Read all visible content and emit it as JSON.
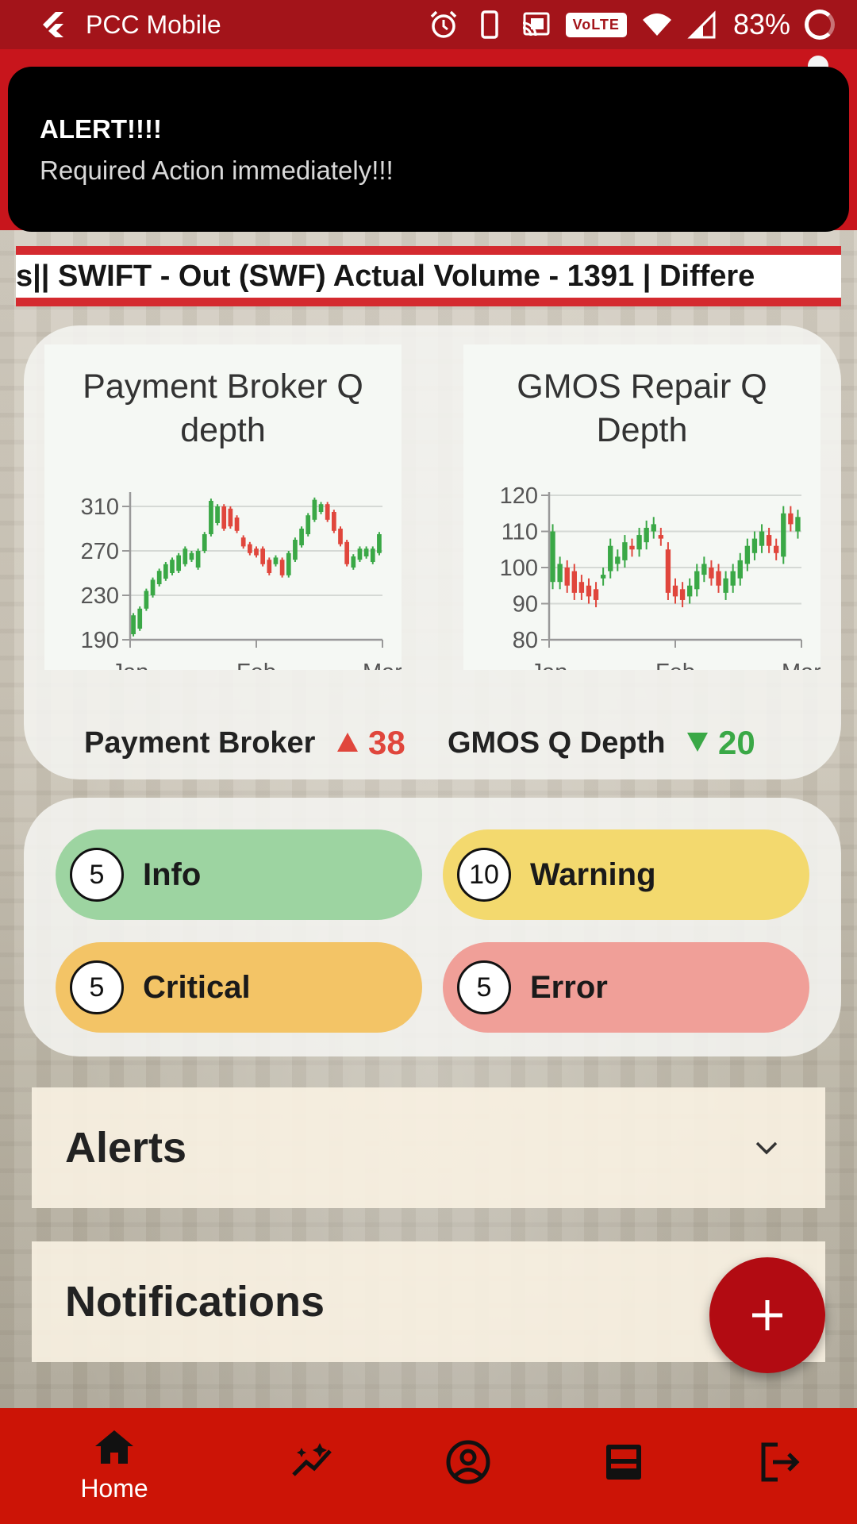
{
  "statusbar": {
    "app_name": "PCC Mobile",
    "volte": "VoLTE",
    "battery": "83%"
  },
  "toast": {
    "title": "ALERT!!!!",
    "message": "Required Action immediately!!!"
  },
  "ticker": {
    "text": "s||  SWIFT - Out (SWF) Actual Volume - 1391 | Differe"
  },
  "charts": {
    "payment": {
      "title_line1": "Payment Broker Q",
      "title_line2": "depth",
      "summary_label": "Payment Broker",
      "summary_value": "38",
      "summary_direction": "up"
    },
    "gmos": {
      "title_line1": "GMOS Repair Q",
      "title_line2": "Depth",
      "summary_label": "GMOS Q Depth",
      "summary_value": "20",
      "summary_direction": "down"
    }
  },
  "chart_data": [
    {
      "type": "candlestick",
      "title": "Payment Broker Q depth",
      "x_ticks": [
        "Jan",
        "Feb",
        "Mar"
      ],
      "y_ticks": [
        190,
        230,
        270,
        310
      ],
      "ylim": [
        190,
        320
      ],
      "candles": [
        {
          "o": 195,
          "c": 212
        },
        {
          "o": 200,
          "c": 218
        },
        {
          "o": 218,
          "c": 234
        },
        {
          "o": 230,
          "c": 244
        },
        {
          "o": 240,
          "c": 252
        },
        {
          "o": 245,
          "c": 258
        },
        {
          "o": 250,
          "c": 262
        },
        {
          "o": 252,
          "c": 266
        },
        {
          "o": 258,
          "c": 272
        },
        {
          "o": 262,
          "c": 268
        },
        {
          "o": 255,
          "c": 270
        },
        {
          "o": 270,
          "c": 285
        },
        {
          "o": 285,
          "c": 315
        },
        {
          "o": 295,
          "c": 310
        },
        {
          "o": 310,
          "c": 290
        },
        {
          "o": 308,
          "c": 292
        },
        {
          "o": 300,
          "c": 288
        },
        {
          "o": 282,
          "c": 274
        },
        {
          "o": 276,
          "c": 268
        },
        {
          "o": 272,
          "c": 266
        },
        {
          "o": 272,
          "c": 258
        },
        {
          "o": 262,
          "c": 250
        },
        {
          "o": 258,
          "c": 264
        },
        {
          "o": 262,
          "c": 248
        },
        {
          "o": 248,
          "c": 268
        },
        {
          "o": 262,
          "c": 280
        },
        {
          "o": 275,
          "c": 290
        },
        {
          "o": 285,
          "c": 302
        },
        {
          "o": 298,
          "c": 316
        },
        {
          "o": 305,
          "c": 312
        },
        {
          "o": 312,
          "c": 298
        },
        {
          "o": 305,
          "c": 288
        },
        {
          "o": 290,
          "c": 276
        },
        {
          "o": 278,
          "c": 258
        },
        {
          "o": 255,
          "c": 265
        },
        {
          "o": 262,
          "c": 272
        },
        {
          "o": 265,
          "c": 272
        },
        {
          "o": 260,
          "c": 272
        },
        {
          "o": 268,
          "c": 285
        }
      ]
    },
    {
      "type": "candlestick",
      "title": "GMOS Repair Q Depth",
      "x_ticks": [
        "Jan",
        "Feb",
        "Mar"
      ],
      "y_ticks": [
        80,
        90,
        100,
        110,
        120
      ],
      "ylim": [
        80,
        120
      ],
      "candles": [
        {
          "o": 96,
          "c": 110
        },
        {
          "o": 96,
          "c": 101
        },
        {
          "o": 100,
          "c": 95
        },
        {
          "o": 99,
          "c": 93
        },
        {
          "o": 96,
          "c": 93
        },
        {
          "o": 95,
          "c": 92
        },
        {
          "o": 94,
          "c": 91
        },
        {
          "o": 97,
          "c": 98
        },
        {
          "o": 99,
          "c": 106
        },
        {
          "o": 101,
          "c": 103
        },
        {
          "o": 102,
          "c": 107
        },
        {
          "o": 106,
          "c": 105
        },
        {
          "o": 105,
          "c": 109
        },
        {
          "o": 107,
          "c": 111
        },
        {
          "o": 110,
          "c": 112
        },
        {
          "o": 109,
          "c": 108
        },
        {
          "o": 105,
          "c": 93
        },
        {
          "o": 95,
          "c": 92
        },
        {
          "o": 94,
          "c": 91
        },
        {
          "o": 92,
          "c": 95
        },
        {
          "o": 94,
          "c": 99
        },
        {
          "o": 98,
          "c": 101
        },
        {
          "o": 100,
          "c": 97
        },
        {
          "o": 99,
          "c": 95
        },
        {
          "o": 93,
          "c": 97
        },
        {
          "o": 95,
          "c": 99
        },
        {
          "o": 97,
          "c": 102
        },
        {
          "o": 101,
          "c": 106
        },
        {
          "o": 104,
          "c": 108
        },
        {
          "o": 106,
          "c": 110
        },
        {
          "o": 109,
          "c": 106
        },
        {
          "o": 106,
          "c": 104
        },
        {
          "o": 103,
          "c": 115
        },
        {
          "o": 115,
          "c": 112
        },
        {
          "o": 110,
          "c": 114
        }
      ]
    }
  ],
  "status_counts": {
    "info": {
      "count": "5",
      "label": "Info"
    },
    "warning": {
      "count": "10",
      "label": "Warning"
    },
    "critical": {
      "count": "5",
      "label": "Critical"
    },
    "error": {
      "count": "5",
      "label": "Error"
    }
  },
  "sections": {
    "alerts": "Alerts",
    "notifications": "Notifications"
  },
  "bottom_nav": {
    "home_label": "Home",
    "icons": [
      "home-icon",
      "insights-icon",
      "account-circle-icon",
      "inbox-icon",
      "logout-icon"
    ]
  },
  "colors": {
    "statusbar": "#a3141a",
    "nav": "#cc1406",
    "fab": "#b20b12",
    "info": "#9dd4a1",
    "warning": "#f3d96e",
    "critical": "#f3c466",
    "error": "#f09f98",
    "candle_up": "#3aa846",
    "candle_down": "#e0463c"
  }
}
